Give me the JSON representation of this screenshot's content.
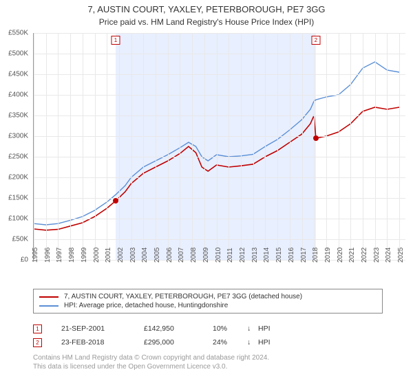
{
  "title": "7, AUSTIN COURT, YAXLEY, PETERBOROUGH, PE7 3GG",
  "subtitle": "Price paid vs. HM Land Registry's House Price Index (HPI)",
  "chart": {
    "type": "line",
    "xlim": [
      1995,
      2025.5
    ],
    "ylim": [
      0,
      550000
    ],
    "ytick_step": 50000,
    "yticks": [
      "£0",
      "£50K",
      "£100K",
      "£150K",
      "£200K",
      "£250K",
      "£300K",
      "£350K",
      "£400K",
      "£450K",
      "£500K",
      "£550K"
    ],
    "xticks": [
      1995,
      1996,
      1997,
      1998,
      1999,
      2000,
      2001,
      2002,
      2003,
      2004,
      2005,
      2006,
      2007,
      2008,
      2009,
      2010,
      2011,
      2012,
      2013,
      2014,
      2015,
      2016,
      2017,
      2018,
      2019,
      2020,
      2021,
      2022,
      2023,
      2024,
      2025
    ],
    "background_color": "#ffffff",
    "grid_color": "#e8e8e8",
    "axis_color": "#999999",
    "label_fontsize": 10,
    "title_fontsize": 13,
    "band_color": "#e8efff",
    "band_range": [
      2001.72,
      2018.15
    ],
    "series": [
      {
        "name": "price_paid",
        "label": "7, AUSTIN COURT, YAXLEY, PETERBOROUGH, PE7 3GG (detached house)",
        "color": "#c00000",
        "line_width": 1.6,
        "data": [
          [
            1995.0,
            75000
          ],
          [
            1996.0,
            72000
          ],
          [
            1997.0,
            74000
          ],
          [
            1998.0,
            82000
          ],
          [
            1999.0,
            90000
          ],
          [
            2000.0,
            105000
          ],
          [
            2001.0,
            125000
          ],
          [
            2001.72,
            142950
          ],
          [
            2002.5,
            165000
          ],
          [
            2003.0,
            185000
          ],
          [
            2004.0,
            210000
          ],
          [
            2005.0,
            225000
          ],
          [
            2006.0,
            240000
          ],
          [
            2007.0,
            258000
          ],
          [
            2007.7,
            275000
          ],
          [
            2008.3,
            260000
          ],
          [
            2008.8,
            225000
          ],
          [
            2009.3,
            215000
          ],
          [
            2010.0,
            230000
          ],
          [
            2011.0,
            225000
          ],
          [
            2012.0,
            228000
          ],
          [
            2013.0,
            232000
          ],
          [
            2014.0,
            250000
          ],
          [
            2015.0,
            265000
          ],
          [
            2016.0,
            285000
          ],
          [
            2017.0,
            305000
          ],
          [
            2017.7,
            330000
          ],
          [
            2018.0,
            350000
          ],
          [
            2018.15,
            295000
          ],
          [
            2019.0,
            300000
          ],
          [
            2020.0,
            310000
          ],
          [
            2021.0,
            330000
          ],
          [
            2022.0,
            360000
          ],
          [
            2023.0,
            370000
          ],
          [
            2024.0,
            365000
          ],
          [
            2025.0,
            370000
          ]
        ]
      },
      {
        "name": "hpi",
        "label": "HPI: Average price, detached house, Huntingdonshire",
        "color": "#5b8fd6",
        "line_width": 1.4,
        "data": [
          [
            1995.0,
            88000
          ],
          [
            1996.0,
            85000
          ],
          [
            1997.0,
            88000
          ],
          [
            1998.0,
            96000
          ],
          [
            1999.0,
            105000
          ],
          [
            2000.0,
            120000
          ],
          [
            2001.0,
            140000
          ],
          [
            2001.72,
            158000
          ],
          [
            2002.5,
            180000
          ],
          [
            2003.0,
            200000
          ],
          [
            2004.0,
            225000
          ],
          [
            2005.0,
            240000
          ],
          [
            2006.0,
            255000
          ],
          [
            2007.0,
            272000
          ],
          [
            2007.7,
            285000
          ],
          [
            2008.3,
            275000
          ],
          [
            2008.8,
            250000
          ],
          [
            2009.3,
            240000
          ],
          [
            2010.0,
            255000
          ],
          [
            2011.0,
            250000
          ],
          [
            2012.0,
            252000
          ],
          [
            2013.0,
            256000
          ],
          [
            2014.0,
            275000
          ],
          [
            2015.0,
            292000
          ],
          [
            2016.0,
            315000
          ],
          [
            2017.0,
            340000
          ],
          [
            2017.7,
            365000
          ],
          [
            2018.0,
            385000
          ],
          [
            2018.15,
            388000
          ],
          [
            2019.0,
            395000
          ],
          [
            2020.0,
            400000
          ],
          [
            2021.0,
            425000
          ],
          [
            2022.0,
            465000
          ],
          [
            2023.0,
            480000
          ],
          [
            2024.0,
            460000
          ],
          [
            2025.0,
            455000
          ]
        ]
      }
    ],
    "markers": [
      {
        "n": "1",
        "x": 2001.72,
        "y": 142950
      },
      {
        "n": "2",
        "x": 2018.15,
        "y": 295000
      }
    ]
  },
  "legend": {
    "items": [
      {
        "color": "#c00000",
        "label": "7, AUSTIN COURT, YAXLEY, PETERBOROUGH, PE7 3GG (detached house)"
      },
      {
        "color": "#5b8fd6",
        "label": "HPI: Average price, detached house, Huntingdonshire"
      }
    ]
  },
  "sales": [
    {
      "n": "1",
      "date": "21-SEP-2001",
      "price": "£142,950",
      "pct": "10%",
      "arrow": "↓",
      "hpi": "HPI"
    },
    {
      "n": "2",
      "date": "23-FEB-2018",
      "price": "£295,000",
      "pct": "24%",
      "arrow": "↓",
      "hpi": "HPI"
    }
  ],
  "attribution": {
    "line1": "Contains HM Land Registry data © Crown copyright and database right 2024.",
    "line2": "This data is licensed under the Open Government Licence v3.0."
  }
}
